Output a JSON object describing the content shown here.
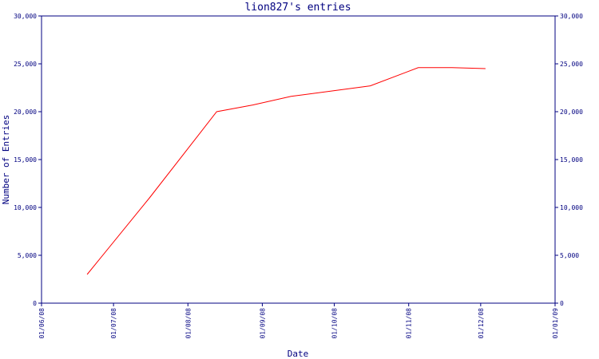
{
  "chart_data": {
    "type": "line",
    "title": "lion827's entries",
    "xlabel": "Date",
    "ylabel": "Number of Entries",
    "ylim": [
      0,
      30000
    ],
    "xlim": [
      "2008-06-01",
      "2009-01-01"
    ],
    "x_tick_labels": [
      "01/06/08",
      "01/07/08",
      "01/08/08",
      "01/09/08",
      "01/10/08",
      "01/11/08",
      "01/12/08",
      "01/01/09"
    ],
    "y_tick_labels": [
      "0",
      "5,000",
      "10,000",
      "15,000",
      "20,000",
      "25,000",
      "30,000"
    ],
    "grid": false,
    "colors": {
      "axis": "#000080",
      "series": "#ff0000",
      "text": "#000080"
    },
    "series": [
      {
        "points": [
          {
            "x": "2008-06-20",
            "y": 3000
          },
          {
            "x": "2008-07-16",
            "y": 11000
          },
          {
            "x": "2008-08-13",
            "y": 20000
          },
          {
            "x": "2008-08-28",
            "y": 20700
          },
          {
            "x": "2008-09-13",
            "y": 21600
          },
          {
            "x": "2008-10-01",
            "y": 22200
          },
          {
            "x": "2008-10-16",
            "y": 22700
          },
          {
            "x": "2008-11-05",
            "y": 24600
          },
          {
            "x": "2008-11-19",
            "y": 24600
          },
          {
            "x": "2008-12-03",
            "y": 24500
          }
        ]
      }
    ]
  }
}
